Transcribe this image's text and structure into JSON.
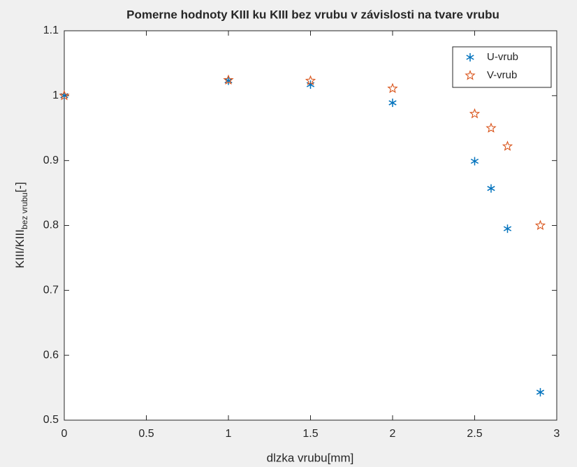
{
  "chart_data": {
    "type": "scatter",
    "title": "Pomerne hodnoty KIII ku KIII bez vrubu v závislosti na tvare vrubu",
    "xlabel": "dlzka vrubu[mm]",
    "ylabel": {
      "main": "KIII/KIII",
      "sub": "bez vrubu",
      "suffix": "[-]"
    },
    "xlim": [
      0,
      3
    ],
    "ylim": [
      0.5,
      1.1
    ],
    "xticks": [
      0,
      0.5,
      1,
      1.5,
      2,
      2.5,
      3
    ],
    "yticks": [
      0.5,
      0.6,
      0.7,
      0.8,
      0.9,
      1,
      1.1
    ],
    "grid": false,
    "legend": "top-right",
    "series": [
      {
        "name": "U-vrub",
        "color": "#0072bd",
        "marker": "asterisk",
        "x": [
          0,
          1,
          1.5,
          2,
          2.5,
          2.6,
          2.7,
          2.9
        ],
        "values": [
          1,
          1.023,
          1.017,
          0.989,
          0.899,
          0.857,
          0.795,
          0.543
        ]
      },
      {
        "name": "V-vrub",
        "color": "#d95319",
        "marker": "pentagram",
        "x": [
          0,
          1,
          1.5,
          2,
          2.5,
          2.6,
          2.7,
          2.9
        ],
        "values": [
          1,
          1.024,
          1.023,
          1.011,
          0.972,
          0.95,
          0.922,
          0.8
        ]
      }
    ]
  }
}
